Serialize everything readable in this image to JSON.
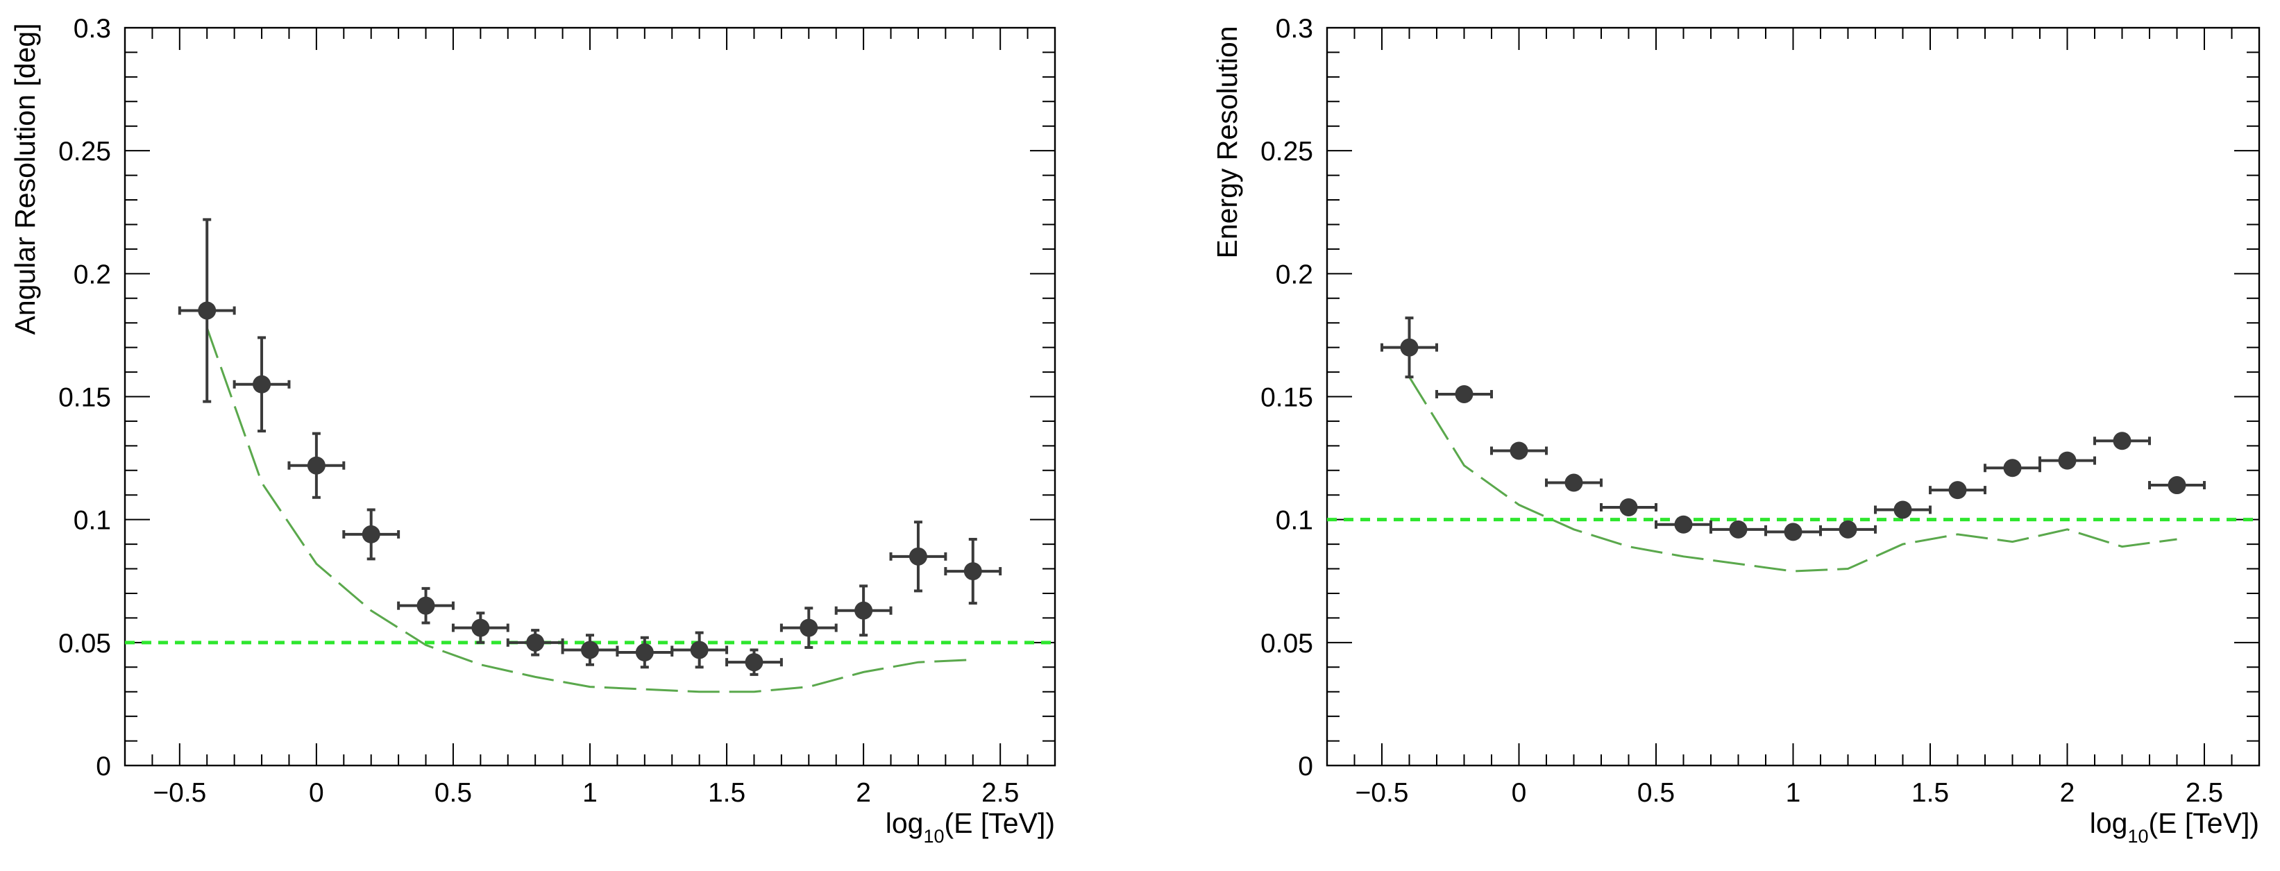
{
  "chart_data": [
    {
      "type": "scatter",
      "id": "angular",
      "title": "",
      "xlabel": {
        "prefix": "log",
        "subscript": "10",
        "suffix": "(E [TeV])"
      },
      "ylabel": "Angular Resolution [deg]",
      "xlim": [
        -0.7,
        2.7
      ],
      "ylim": [
        0,
        0.3
      ],
      "xticks": [
        -0.5,
        0,
        0.5,
        1,
        1.5,
        2,
        2.5
      ],
      "xtick_labels": [
        "−0.5",
        "0",
        "0.5",
        "1",
        "1.5",
        "2",
        "2.5"
      ],
      "yticks": [
        0,
        0.05,
        0.1,
        0.15,
        0.2,
        0.25,
        0.3
      ],
      "ytick_labels": [
        "0",
        "0.05",
        "0.1",
        "0.15",
        "0.2",
        "0.25",
        "0.3"
      ],
      "points": {
        "x": [
          -0.4,
          -0.2,
          0.0,
          0.2,
          0.4,
          0.6,
          0.8,
          1.0,
          1.2,
          1.4,
          1.6,
          1.8,
          2.0,
          2.2,
          2.4
        ],
        "y": [
          0.185,
          0.155,
          0.122,
          0.094,
          0.065,
          0.056,
          0.05,
          0.047,
          0.046,
          0.047,
          0.042,
          0.056,
          0.063,
          0.085,
          0.079
        ],
        "xerr": 0.1,
        "yerr": [
          0.037,
          0.019,
          0.013,
          0.01,
          0.007,
          0.006,
          0.005,
          0.006,
          0.006,
          0.007,
          0.005,
          0.008,
          0.01,
          0.014,
          0.013
        ]
      },
      "requirement_line": {
        "y": 0.05,
        "color": "#2ee62e"
      },
      "reference_curve": {
        "color": "#5aa84c",
        "x": [
          -0.4,
          -0.2,
          0.0,
          0.2,
          0.4,
          0.6,
          0.8,
          1.0,
          1.2,
          1.4,
          1.6,
          1.8,
          2.0,
          2.2,
          2.4
        ],
        "y": [
          0.178,
          0.115,
          0.082,
          0.063,
          0.049,
          0.041,
          0.036,
          0.032,
          0.031,
          0.03,
          0.03,
          0.032,
          0.038,
          0.042,
          0.043
        ]
      }
    },
    {
      "type": "scatter",
      "id": "energy",
      "title": "",
      "xlabel": {
        "prefix": "log",
        "subscript": "10",
        "suffix": "(E [TeV])"
      },
      "ylabel": "Energy Resolution",
      "xlim": [
        -0.7,
        2.7
      ],
      "ylim": [
        0,
        0.3
      ],
      "xticks": [
        -0.5,
        0,
        0.5,
        1,
        1.5,
        2,
        2.5
      ],
      "xtick_labels": [
        "−0.5",
        "0",
        "0.5",
        "1",
        "1.5",
        "2",
        "2.5"
      ],
      "yticks": [
        0,
        0.05,
        0.1,
        0.15,
        0.2,
        0.25,
        0.3
      ],
      "ytick_labels": [
        "0",
        "0.05",
        "0.1",
        "0.15",
        "0.2",
        "0.25",
        "0.3"
      ],
      "points": {
        "x": [
          -0.4,
          -0.2,
          0.0,
          0.2,
          0.4,
          0.6,
          0.8,
          1.0,
          1.2,
          1.4,
          1.6,
          1.8,
          2.0,
          2.2,
          2.4
        ],
        "y": [
          0.17,
          0.151,
          0.128,
          0.115,
          0.105,
          0.098,
          0.096,
          0.095,
          0.096,
          0.104,
          0.112,
          0.121,
          0.124,
          0.132,
          0.114
        ],
        "xerr": 0.1,
        "yerr": [
          0.012,
          0.002,
          0.002,
          0.002,
          0.002,
          0.002,
          0.002,
          0.002,
          0.002,
          0.002,
          0.002,
          0.002,
          0.002,
          0.002,
          0.002
        ]
      },
      "requirement_line": {
        "y": 0.1,
        "color": "#2ee62e"
      },
      "reference_curve": {
        "color": "#5aa84c",
        "x": [
          -0.4,
          -0.2,
          0.0,
          0.2,
          0.4,
          0.6,
          0.8,
          1.0,
          1.2,
          1.4,
          1.6,
          1.8,
          2.0,
          2.2,
          2.4
        ],
        "y": [
          0.158,
          0.122,
          0.106,
          0.096,
          0.089,
          0.085,
          0.082,
          0.079,
          0.08,
          0.09,
          0.094,
          0.091,
          0.096,
          0.089,
          0.092
        ]
      }
    }
  ]
}
